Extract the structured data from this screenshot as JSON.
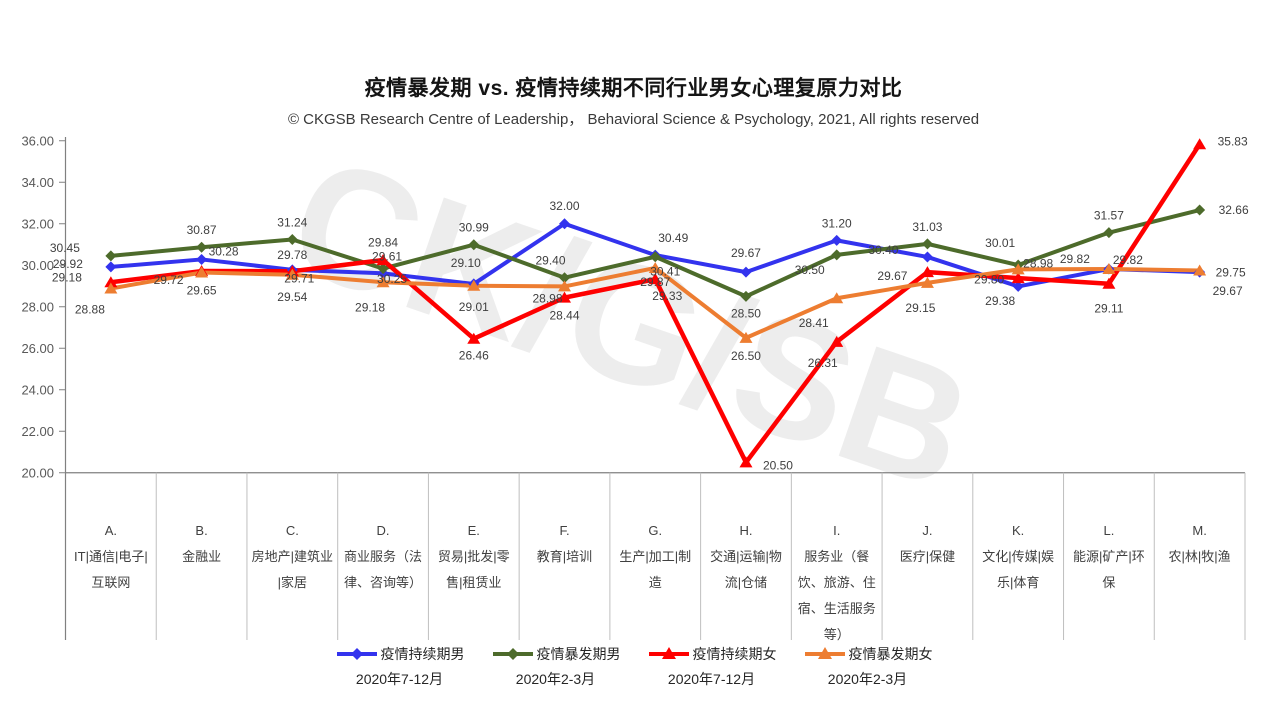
{
  "header": {
    "title": "疫情暴发期 vs. 疫情持续期不同行业男女心理复原力对比",
    "subtitle": "© CKGSB Research Centre of Leadership， Behavioral Science & Psychology, 2021, All rights reserved"
  },
  "watermark": "CK/G/SB",
  "chart_data": {
    "type": "line",
    "title": "疫情暴发期 vs. 疫情持续期不同行业男女心理复原力对比",
    "xlabel": "",
    "ylabel": "",
    "ylim": [
      20.0,
      36.0
    ],
    "y_tick_step": 2.0,
    "y_tick_labels": [
      "36.00",
      "34.00",
      "32.00",
      "30.00",
      "28.00",
      "26.00",
      "24.00",
      "22.00",
      "20.00"
    ],
    "grid": "off",
    "legend_position": "bottom",
    "value_label_format": "0.00",
    "categories": [
      {
        "letter": "A.",
        "name": "IT|通信|电子|互联网",
        "lines": [
          "IT|通信|电子|",
          "互联网"
        ]
      },
      {
        "letter": "B.",
        "name": "金融业",
        "lines": [
          "金融业"
        ]
      },
      {
        "letter": "C.",
        "name": "房地产|建筑业|家居",
        "lines": [
          "房地产|建筑业",
          "|家居"
        ]
      },
      {
        "letter": "D.",
        "name": "商业服务（法律、咨询等）",
        "lines": [
          "商业服务（法",
          "律、咨询等）"
        ]
      },
      {
        "letter": "E.",
        "name": "贸易|批发|零售|租赁业",
        "lines": [
          "贸易|批发|零",
          "售|租赁业"
        ]
      },
      {
        "letter": "F.",
        "name": "教育|培训",
        "lines": [
          "教育|培训"
        ]
      },
      {
        "letter": "G.",
        "name": "生产|加工|制造",
        "lines": [
          "生产|加工|制",
          "造"
        ]
      },
      {
        "letter": "H.",
        "name": "交通|运输|物流|仓储",
        "lines": [
          "交通|运输|物",
          "流|仓储"
        ]
      },
      {
        "letter": "I.",
        "name": "服务业（餐饮、旅游、住宿、生活服务等）",
        "lines": [
          "服务业（餐",
          "饮、旅游、住",
          "宿、生活服务",
          "等）"
        ]
      },
      {
        "letter": "J.",
        "name": "医疗|保健",
        "lines": [
          "医疗|保健"
        ]
      },
      {
        "letter": "K.",
        "name": "文化|传媒|娱乐|体育",
        "lines": [
          "文化|传媒|娱",
          "乐|体育"
        ]
      },
      {
        "letter": "L.",
        "name": "能源|矿产|环保",
        "lines": [
          "能源|矿产|环",
          "保"
        ]
      },
      {
        "letter": "M.",
        "name": "农|林|牧|渔",
        "lines": [
          "农|林|牧|渔"
        ]
      }
    ],
    "series": [
      {
        "name": "疫情持续期男",
        "period": "2020年7-12月",
        "color": "#3333ee",
        "marker": "diamond",
        "values": [
          29.92,
          30.28,
          29.78,
          29.61,
          29.1,
          32.0,
          30.49,
          29.67,
          31.2,
          30.4,
          28.98,
          29.82,
          29.67
        ],
        "label_offsets": [
          [
            -43,
            -3
          ],
          [
            22,
            -8
          ],
          [
            0,
            -15
          ],
          [
            4,
            -17
          ],
          [
            -8,
            -21
          ],
          [
            0,
            -18
          ],
          [
            18,
            -17
          ],
          [
            0,
            -19
          ],
          [
            0,
            -17
          ],
          [
            -44,
            -7
          ],
          [
            20,
            -23
          ],
          [
            -34,
            -10
          ],
          [
            28,
            19
          ]
        ]
      },
      {
        "name": "疫情暴发期男",
        "period": "2020年2-3月",
        "color": "#4d6b2b",
        "marker": "diamond",
        "values": [
          30.45,
          30.87,
          31.24,
          29.84,
          30.99,
          29.4,
          30.41,
          28.5,
          30.5,
          31.03,
          30.01,
          31.57,
          32.66
        ],
        "label_offsets": [
          [
            -46,
            -8
          ],
          [
            0,
            -17
          ],
          [
            0,
            -17
          ],
          [
            0,
            -26
          ],
          [
            0,
            -17
          ],
          [
            -14,
            -17
          ],
          [
            10,
            15
          ],
          [
            0,
            17
          ],
          [
            -27,
            15
          ],
          [
            0,
            -17
          ],
          [
            -18,
            -22
          ],
          [
            0,
            -17
          ],
          [
            34,
            0
          ]
        ]
      },
      {
        "name": "疫情持续期女",
        "period": "2020年7-12月",
        "color": "#fe0000",
        "marker": "triangle",
        "values": [
          29.18,
          29.72,
          29.71,
          30.25,
          26.46,
          28.44,
          29.33,
          20.5,
          26.31,
          29.67,
          29.38,
          29.11,
          35.83
        ],
        "label_offsets": [
          [
            -44,
            -5
          ],
          [
            -33,
            9
          ],
          [
            7,
            7
          ],
          [
            9,
            19
          ],
          [
            0,
            17
          ],
          [
            0,
            18
          ],
          [
            12,
            17
          ],
          [
            32,
            3
          ],
          [
            -14,
            21
          ],
          [
            -35,
            4
          ],
          [
            -18,
            23
          ],
          [
            0,
            25
          ],
          [
            33,
            -3
          ]
        ]
      },
      {
        "name": "疫情暴发期女",
        "period": "2020年2-3月",
        "color": "#ed7d31",
        "marker": "triangle",
        "values": [
          28.88,
          29.65,
          29.54,
          29.18,
          29.01,
          28.98,
          29.87,
          26.5,
          28.41,
          29.15,
          29.8,
          29.82,
          29.75
        ],
        "label_offsets": [
          [
            -21,
            21
          ],
          [
            0,
            18
          ],
          [
            0,
            22
          ],
          [
            -13,
            25
          ],
          [
            0,
            21
          ],
          [
            -17,
            12
          ],
          [
            0,
            14
          ],
          [
            0,
            18
          ],
          [
            -23,
            25
          ],
          [
            -7,
            25
          ],
          [
            -29,
            10
          ],
          [
            19,
            -9
          ],
          [
            31,
            2
          ]
        ]
      }
    ]
  }
}
